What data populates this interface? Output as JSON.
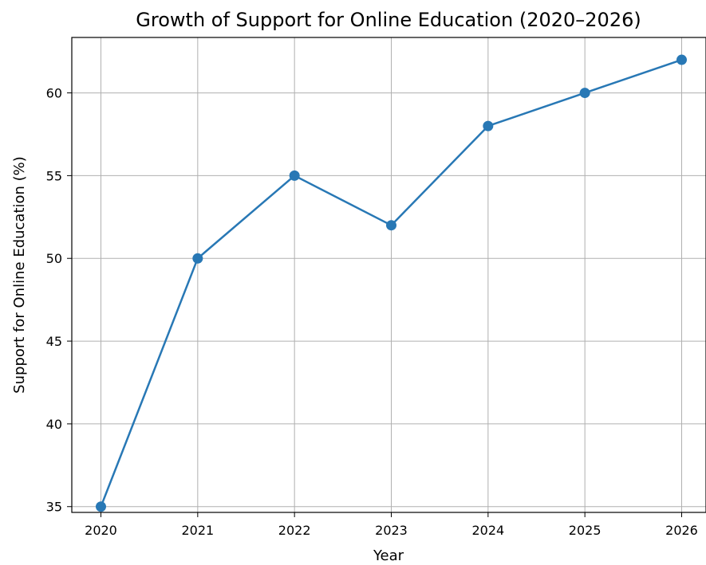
{
  "chart_data": {
    "type": "line",
    "title": "Growth of Support for Online Education (2020–2026)",
    "xlabel": "Year",
    "ylabel": "Support for Online Education (%)",
    "x": [
      "2020",
      "2021",
      "2022",
      "2023",
      "2024",
      "2025",
      "2026"
    ],
    "series": [
      {
        "values": [
          35,
          50,
          55,
          52,
          58,
          60,
          62
        ],
        "color": "#2878b5",
        "marker": "circle"
      }
    ],
    "yticks": [
      35,
      40,
      45,
      50,
      55,
      60
    ],
    "ylim": [
      34.65,
      63.35
    ],
    "grid": true
  }
}
